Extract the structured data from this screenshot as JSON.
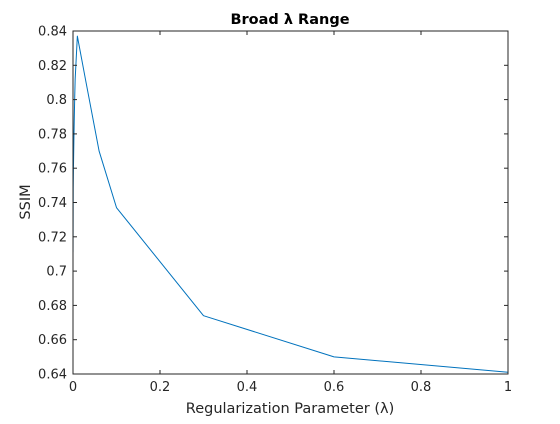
{
  "chart_data": {
    "type": "line",
    "title": "Broad λ Range",
    "xlabel": "Regularization Parameter (λ)",
    "ylabel": "SSIM",
    "xlim": [
      0,
      1
    ],
    "ylim": [
      0.64,
      0.84
    ],
    "xticks": [
      0,
      0.2,
      0.4,
      0.6,
      0.8,
      1
    ],
    "xtick_labels": [
      "0",
      "0.2",
      "0.4",
      "0.6",
      "0.8",
      "1"
    ],
    "yticks": [
      0.64,
      0.66,
      0.68,
      0.7,
      0.72,
      0.74,
      0.76,
      0.78,
      0.8,
      0.82,
      0.84
    ],
    "ytick_labels": [
      "0.64",
      "0.66",
      "0.68",
      "0.7",
      "0.72",
      "0.74",
      "0.76",
      "0.78",
      "0.8",
      "0.82",
      "0.84"
    ],
    "grid": false,
    "box": true,
    "series": [
      {
        "color": "#0072BD",
        "x": [
          0.0001,
          0.0005,
          0.001,
          0.002,
          0.003,
          0.004,
          0.005,
          0.01,
          0.03,
          0.06,
          0.1,
          0.3,
          0.6,
          1.0
        ],
        "y": [
          0.711,
          0.748,
          0.76,
          0.776,
          0.79,
          0.802,
          0.812,
          0.837,
          0.81,
          0.77,
          0.737,
          0.674,
          0.65,
          0.641
        ]
      }
    ]
  }
}
